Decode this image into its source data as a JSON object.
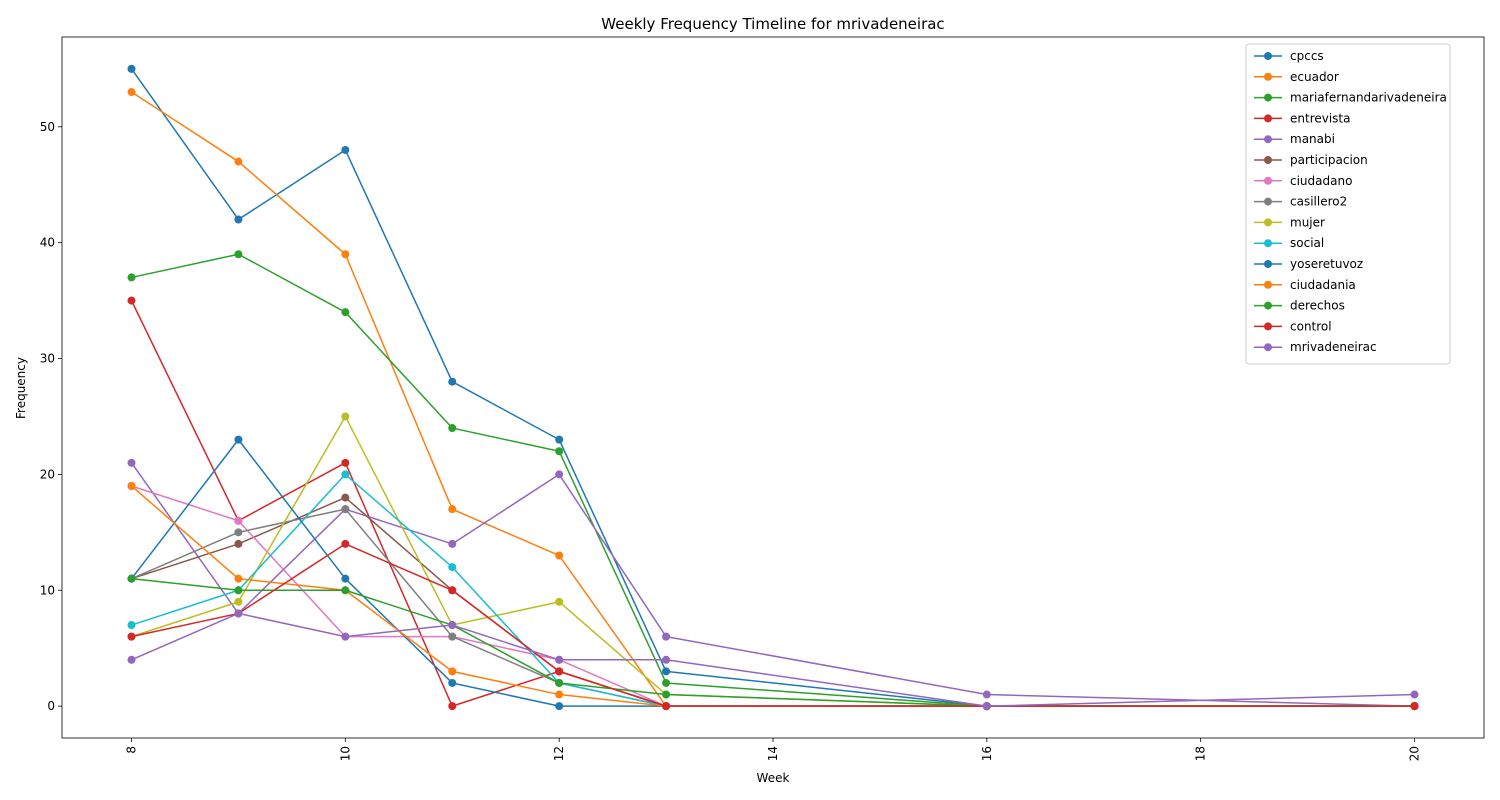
{
  "chart_data": {
    "type": "line",
    "title": "Weekly Frequency Timeline for mrivadeneirac",
    "xlabel": "Week",
    "ylabel": "Frequency",
    "x": [
      8,
      9,
      10,
      11,
      12,
      13,
      16,
      20
    ],
    "xlim": [
      7.35,
      20.65
    ],
    "ylim": [
      -2.75,
      57.75
    ],
    "xticks": [
      8,
      10,
      12,
      14,
      16,
      18,
      20
    ],
    "yticks": [
      0,
      10,
      20,
      30,
      40,
      50
    ],
    "grid": false,
    "legend_position": "top-right",
    "series": [
      {
        "name": "cpccs",
        "color": "#1f77b4",
        "values": [
          55,
          42,
          48,
          28,
          23,
          3,
          0,
          0
        ]
      },
      {
        "name": "ecuador",
        "color": "#ff7f0e",
        "values": [
          53,
          47,
          39,
          17,
          13,
          0,
          0,
          0
        ]
      },
      {
        "name": "mariafernandarivadeneira",
        "color": "#2ca02c",
        "values": [
          37,
          39,
          34,
          24,
          22,
          2,
          0,
          0
        ]
      },
      {
        "name": "entrevista",
        "color": "#d62728",
        "values": [
          35,
          16,
          21,
          0,
          3,
          0,
          0,
          0
        ]
      },
      {
        "name": "manabi",
        "color": "#9467bd",
        "values": [
          21,
          8,
          17,
          14,
          20,
          6,
          1,
          0
        ]
      },
      {
        "name": "participacion",
        "color": "#8c564b",
        "values": [
          11,
          14,
          18,
          10,
          3,
          0,
          0,
          0
        ]
      },
      {
        "name": "ciudadano",
        "color": "#e377c2",
        "values": [
          19,
          16,
          6,
          6,
          4,
          0,
          0,
          0
        ]
      },
      {
        "name": "casillero2",
        "color": "#7f7f7f",
        "values": [
          11,
          15,
          17,
          6,
          2,
          0,
          0,
          0
        ]
      },
      {
        "name": "mujer",
        "color": "#bcbd22",
        "values": [
          6,
          9,
          25,
          7,
          9,
          1,
          0,
          0
        ]
      },
      {
        "name": "social",
        "color": "#17becf",
        "values": [
          7,
          10,
          20,
          12,
          2,
          0,
          0,
          0
        ]
      },
      {
        "name": "yoseretuvoz",
        "color": "#1f77b4",
        "values": [
          11,
          23,
          11,
          2,
          0,
          0,
          0,
          0
        ]
      },
      {
        "name": "ciudadania",
        "color": "#ff7f0e",
        "values": [
          19,
          11,
          10,
          3,
          1,
          0,
          0,
          0
        ]
      },
      {
        "name": "derechos",
        "color": "#2ca02c",
        "values": [
          11,
          10,
          10,
          7,
          2,
          1,
          0,
          0
        ]
      },
      {
        "name": "control",
        "color": "#d62728",
        "values": [
          6,
          8,
          14,
          10,
          3,
          0,
          0,
          0
        ]
      },
      {
        "name": "mrivadeneirac",
        "color": "#9467bd",
        "values": [
          4,
          8,
          6,
          7,
          4,
          4,
          0,
          1
        ]
      }
    ]
  }
}
